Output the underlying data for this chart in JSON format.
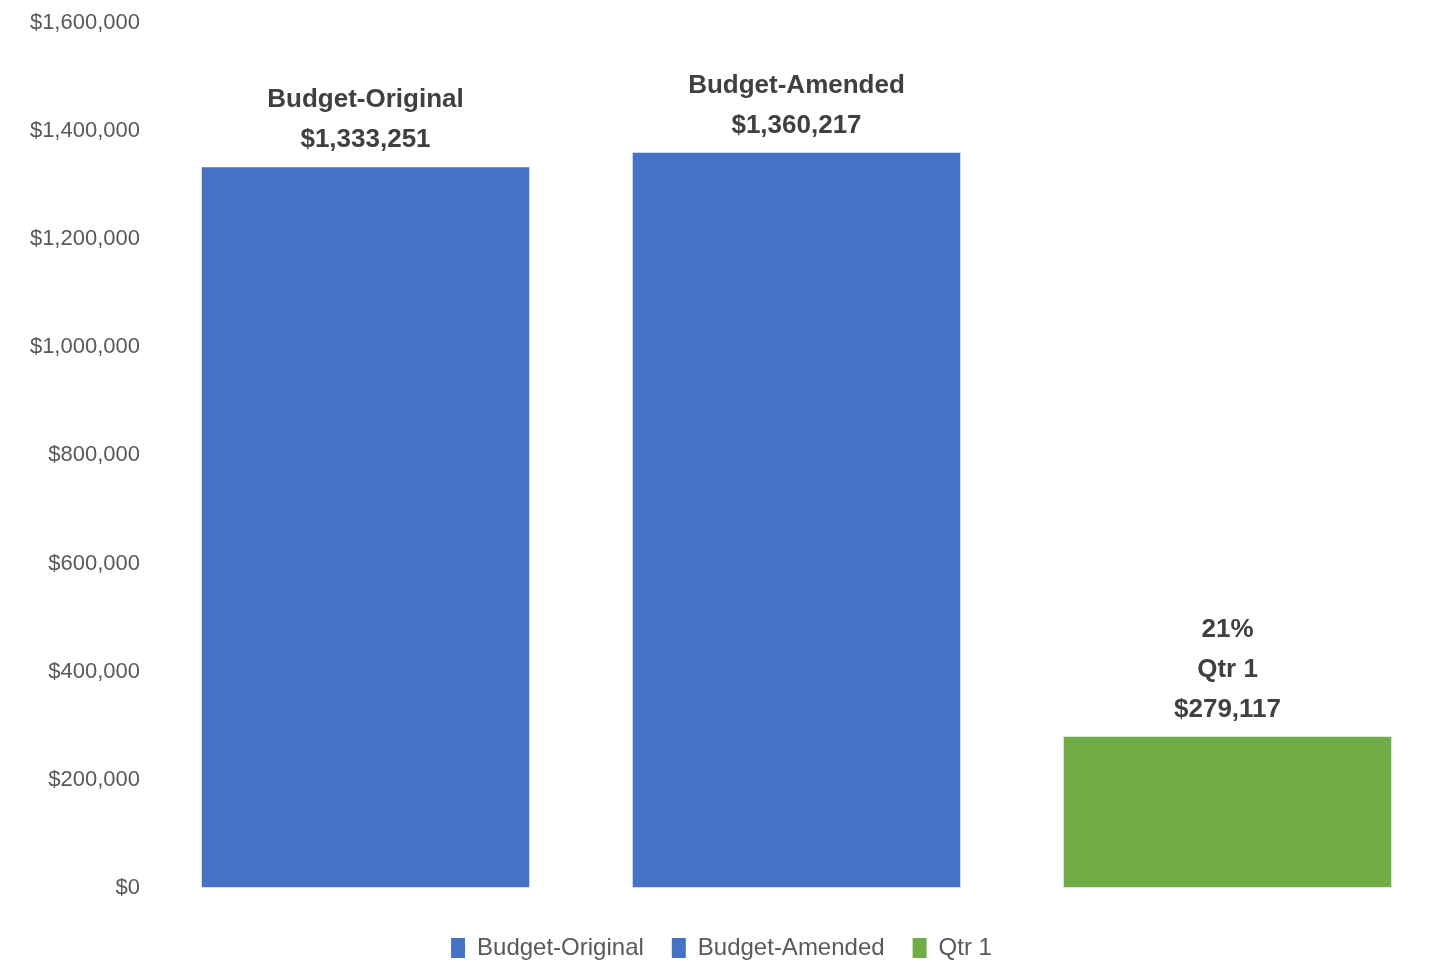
{
  "chart_data": {
    "type": "bar",
    "categories": [
      null,
      null,
      null
    ],
    "series": [
      {
        "name": "Budget-Original",
        "color": "#4472c4",
        "values": [
          1333251,
          null,
          null
        ],
        "value_labels": [
          "$1,333,251",
          null,
          null
        ]
      },
      {
        "name": "Budget-Amended",
        "color": "#4472c4",
        "values": [
          null,
          1360217,
          null
        ],
        "value_labels": [
          null,
          "$1,360,217",
          null
        ]
      },
      {
        "name": "Qtr 1",
        "color": "#70ad47",
        "values": [
          null,
          null,
          279117
        ],
        "value_labels": [
          null,
          null,
          "$279,117"
        ]
      }
    ],
    "annotations": [
      "21%"
    ],
    "stacked": true,
    "ylim": [
      0,
      1600000
    ],
    "yticks": [
      {
        "value": 0,
        "label": "$0"
      },
      {
        "value": 200000,
        "label": "$200,000"
      },
      {
        "value": 400000,
        "label": "$400,000"
      },
      {
        "value": 600000,
        "label": "$600,000"
      },
      {
        "value": 800000,
        "label": "$800,000"
      },
      {
        "value": 1000000,
        "label": "$1,000,000"
      },
      {
        "value": 1200000,
        "label": "$1,200,000"
      },
      {
        "value": 1400000,
        "label": "$1,400,000"
      },
      {
        "value": 1600000,
        "label": "$1,600,000"
      }
    ],
    "grid": false,
    "legend": "bottom"
  }
}
